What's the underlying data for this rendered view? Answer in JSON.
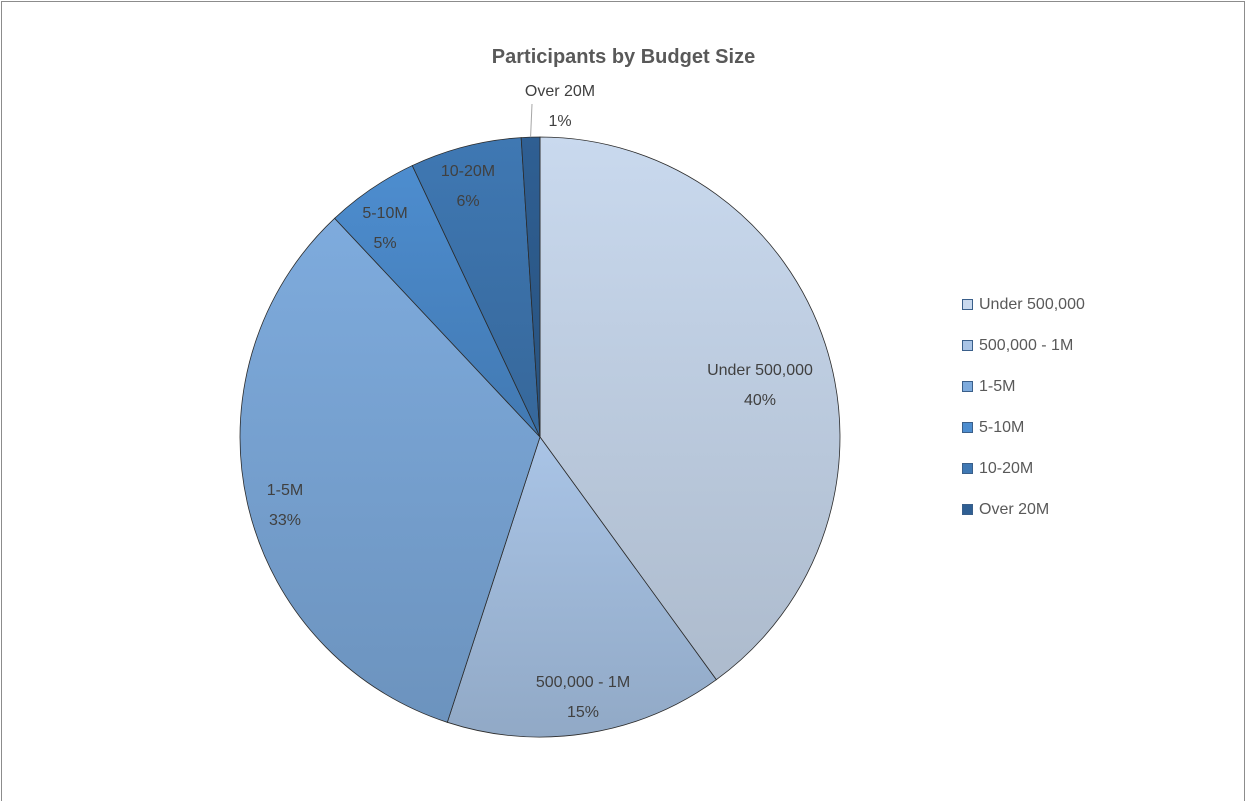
{
  "chart_data": {
    "type": "pie",
    "title": "Participants by Budget Size",
    "categories": [
      "Under 500,000",
      "500,000 - 1M",
      "1-5M",
      "5-10M",
      "10-20M",
      "Over 20M"
    ],
    "values": [
      40,
      15,
      33,
      5,
      6,
      1
    ],
    "value_labels": [
      "40%",
      "15%",
      "33%",
      "5%",
      "6%",
      "1%"
    ],
    "colors": [
      "#c9d9ee",
      "#a9c4e6",
      "#7eabdd",
      "#4d8dcf",
      "#3f78b3",
      "#2f5f93"
    ],
    "legend_position": "right"
  }
}
